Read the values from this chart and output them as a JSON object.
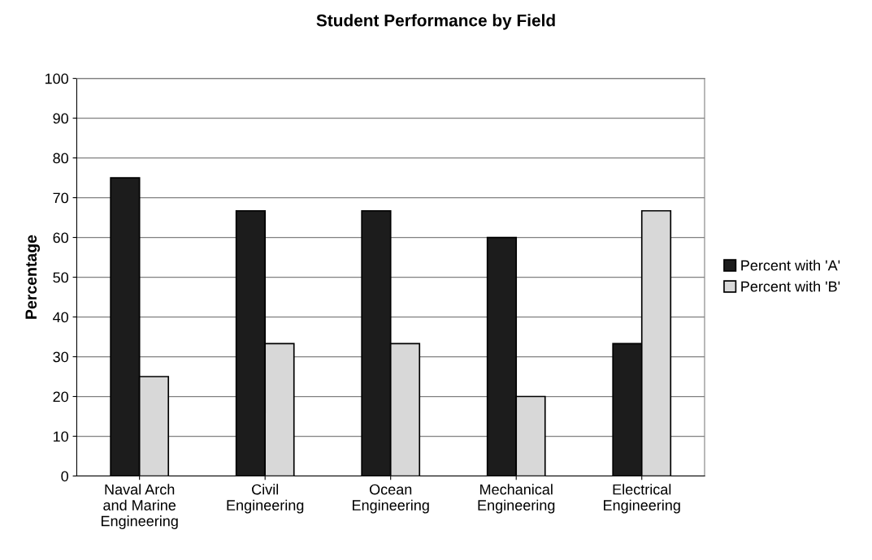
{
  "chart_data": {
    "type": "bar",
    "title": "Student Performance by Field",
    "ylabel": "Percentage",
    "categories": [
      "Naval Arch\nand Marine\nEngineering",
      "Civil\nEngineering",
      "Ocean\nEngineering",
      "Mechanical\nEngineering",
      "Electrical\nEngineering"
    ],
    "series": [
      {
        "name": "Percent with 'A'",
        "color": "#1c1c1c",
        "values": [
          75,
          66.7,
          66.7,
          60,
          33.3
        ]
      },
      {
        "name": "Percent with 'B'",
        "color": "#d8d8d8",
        "values": [
          25,
          33.3,
          33.3,
          20,
          66.7
        ]
      }
    ],
    "ylim": [
      0,
      100
    ],
    "yticks": [
      0,
      10,
      20,
      30,
      40,
      50,
      60,
      70,
      80,
      90,
      100
    ],
    "grid": "y",
    "legend": "right"
  }
}
